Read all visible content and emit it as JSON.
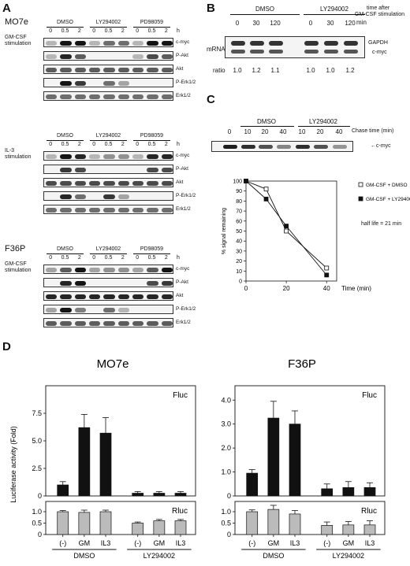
{
  "A": {
    "letter": "A",
    "groups": [
      {
        "cell": "MO7e",
        "stim": [
          "GM-CSF",
          "stimulation"
        ],
        "treatments": [
          "DMSO",
          "LY294002",
          "PD98059"
        ],
        "timepoints": [
          "0",
          "0.5",
          "2",
          "0",
          "0.5",
          "2",
          "0",
          "0.5",
          "2"
        ],
        "unit": "h",
        "rows": [
          "c-myc",
          "P-Akt",
          "Akt",
          "P-Erk1/2",
          "Erk1/2"
        ]
      },
      {
        "cell": "",
        "stim": [
          "IL-3",
          "stimulation"
        ],
        "treatments": [
          "DMSO",
          "LY294002",
          "PD98059"
        ],
        "timepoints": [
          "0",
          "0.5",
          "2",
          "0",
          "0.5",
          "2",
          "0",
          "0.5",
          "2"
        ],
        "unit": "h",
        "rows": [
          "c-myc",
          "P-Akt",
          "Akt",
          "P-Erk1/2",
          "Erk1/2"
        ]
      },
      {
        "cell": "F36P",
        "stim": [
          "GM-CSF",
          "stimulation"
        ],
        "treatments": [
          "DMSO",
          "LY294002",
          "PD98059"
        ],
        "timepoints": [
          "0",
          "0.5",
          "2",
          "0",
          "0.5",
          "2",
          "0",
          "0.5",
          "2"
        ],
        "unit": "h",
        "rows": [
          "c-myc",
          "P-Akt",
          "Akt",
          "P-Erk1/2",
          "Erk1/2"
        ]
      }
    ]
  },
  "B": {
    "letter": "B",
    "treatments": [
      "DMSO",
      "LY294002"
    ],
    "timepoints": [
      "0",
      "30",
      "120",
      "0",
      "30",
      "120"
    ],
    "unit": "min",
    "time_note": [
      "time after",
      "GM-CSF stimulation"
    ],
    "mrna_label": "mRNA",
    "bands": [
      "GAPDH",
      "c-myc"
    ],
    "ratio_label": "ratio",
    "ratios": [
      "1.0",
      "1.2",
      "1.1",
      "1.0",
      "1.0",
      "1.2"
    ]
  },
  "C": {
    "letter": "C",
    "treatments": [
      "DMSO",
      "LY294002"
    ],
    "timepoints": [
      "0",
      "10",
      "20",
      "40",
      "10",
      "20",
      "40"
    ],
    "chase_label": "Chase time (min)",
    "band": "c-myc",
    "half_life": "half life = 21 min",
    "chart_data": {
      "type": "line",
      "ylabel": "% signal remaining",
      "xlabel": "Time (min)",
      "xlim": [
        0,
        45
      ],
      "ylim": [
        0,
        100
      ],
      "xticks": [
        "0",
        "20",
        "40"
      ],
      "yticks": [
        "0",
        "10",
        "20",
        "30",
        "40",
        "50",
        "60",
        "70",
        "80",
        "90",
        "100"
      ],
      "series": [
        {
          "name": "GM-CSF + DMSO",
          "marker": "open-square",
          "x": [
            0,
            10,
            20,
            40
          ],
          "y": [
            100,
            92,
            50,
            13
          ]
        },
        {
          "name": "GM-CSF + LY294002",
          "marker": "filled-square",
          "x": [
            0,
            10,
            20,
            40
          ],
          "y": [
            100,
            82,
            55,
            6
          ]
        }
      ]
    }
  },
  "D": {
    "letter": "D",
    "ylabel": "Luciferase activity (Fold)",
    "charts": [
      {
        "title": "MO7e",
        "categories": [
          "(-)",
          "GM",
          "IL3",
          "(-)",
          "GM",
          "IL3"
        ],
        "groups": [
          "DMSO",
          "LY294002"
        ],
        "fluc": {
          "label": "Fluc",
          "yticks": [
            "0",
            "2.5",
            "5.0",
            "7.5"
          ],
          "ylim": [
            0,
            10
          ],
          "values": [
            1.0,
            6.2,
            5.7,
            0.25,
            0.25,
            0.25
          ],
          "errors": [
            0.3,
            1.2,
            1.4,
            0.15,
            0.15,
            0.15
          ]
        },
        "rluc": {
          "label": "Rluc",
          "yticks": [
            "0",
            "0.5",
            "1.0"
          ],
          "ylim": [
            0,
            1.45
          ],
          "values": [
            1.0,
            0.97,
            1.0,
            0.5,
            0.6,
            0.6
          ],
          "errors": [
            0.05,
            0.1,
            0.07,
            0.05,
            0.06,
            0.06
          ]
        }
      },
      {
        "title": "F36P",
        "categories": [
          "(-)",
          "GM",
          "IL3",
          "(-)",
          "GM",
          "IL3"
        ],
        "groups": [
          "DMSO",
          "LY294002"
        ],
        "fluc": {
          "label": "Fluc",
          "yticks": [
            "0",
            "1.0",
            "2.0",
            "3.0",
            "4.0"
          ],
          "ylim": [
            0,
            4.6
          ],
          "values": [
            0.95,
            3.25,
            3.0,
            0.3,
            0.35,
            0.35
          ],
          "errors": [
            0.15,
            0.7,
            0.55,
            0.2,
            0.25,
            0.2
          ]
        },
        "rluc": {
          "label": "Rluc",
          "yticks": [
            "0",
            "0.5",
            "1.0"
          ],
          "ylim": [
            0,
            1.45
          ],
          "values": [
            1.0,
            1.1,
            0.9,
            0.4,
            0.42,
            0.42
          ],
          "errors": [
            0.08,
            0.18,
            0.15,
            0.15,
            0.15,
            0.18
          ]
        }
      }
    ]
  }
}
